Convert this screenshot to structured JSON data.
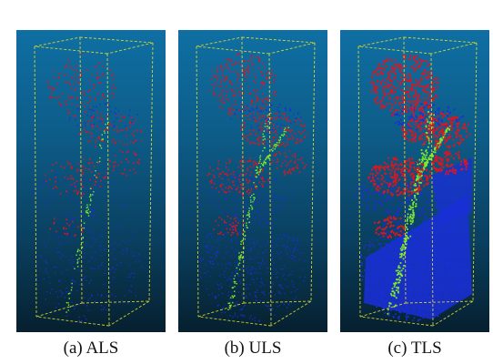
{
  "panels": [
    {
      "id": "a",
      "caption": "(a)  ALS",
      "density": "sparse"
    },
    {
      "id": "b",
      "caption": "(b)  ULS",
      "density": "medium"
    },
    {
      "id": "c",
      "caption": "(c)  TLS",
      "density": "dense"
    }
  ],
  "colors": {
    "crown": "#e0141e",
    "stem": "#7ee82a",
    "ground": "#1a2fd8",
    "bbox": "#e8e02a"
  }
}
